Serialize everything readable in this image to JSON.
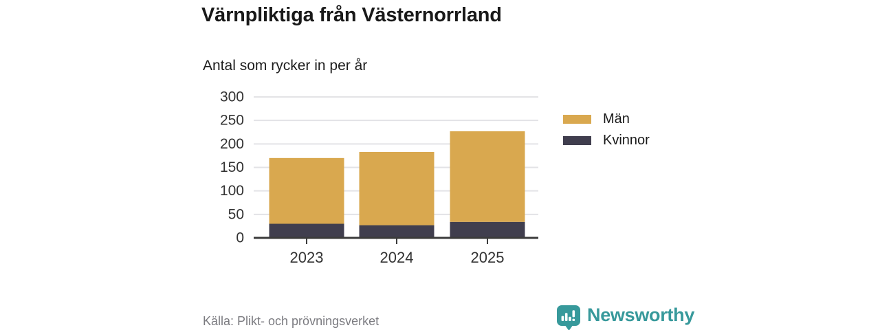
{
  "header": {
    "title": "Värnpliktiga från Västernorrland",
    "subtitle": "Antal som rycker in per år"
  },
  "chart_data": {
    "type": "bar",
    "stacked": true,
    "title": "Värnpliktiga från Västernorrland",
    "subtitle": "Antal som rycker in per år",
    "categories": [
      "2023",
      "2024",
      "2025"
    ],
    "series": [
      {
        "name": "Män",
        "color": "#D9A84F",
        "values": [
          140,
          156,
          193
        ]
      },
      {
        "name": "Kvinnor",
        "color": "#403E4E",
        "values": [
          30,
          27,
          34
        ]
      }
    ],
    "stack_bottom_to_top": [
      "Kvinnor",
      "Män"
    ],
    "totals": [
      170,
      183,
      227
    ],
    "ylim": [
      0,
      300
    ],
    "yticks": [
      0,
      50,
      100,
      150,
      200,
      250,
      300
    ],
    "grid": "horizontal",
    "legend_position": "right"
  },
  "footer": {
    "source": "Källa: Plikt- och prövningsverket",
    "brand": "Newsworthy"
  },
  "colors": {
    "men": "#D9A84F",
    "women": "#403E4E",
    "axis": "#3B3B3B",
    "tick_label": "#333333",
    "gridline": "#E3E3E6",
    "brand_teal": "#37999B",
    "source_text": "#7B7B80"
  }
}
